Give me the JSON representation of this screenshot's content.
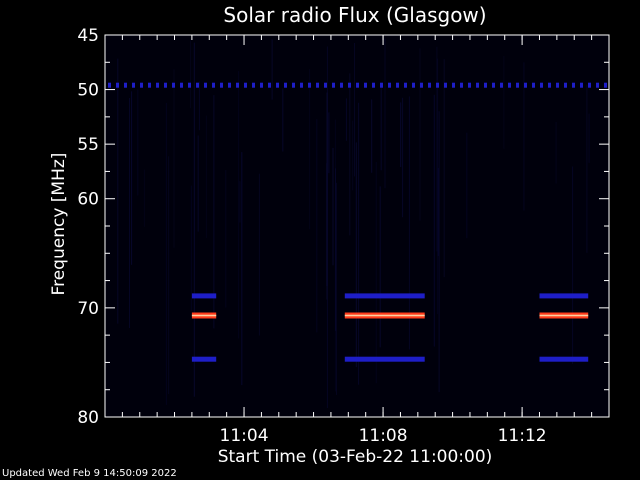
{
  "footer": {
    "updated": "Updated Wed Feb  9 14:50:09 2022"
  },
  "colors": {
    "background": "#000000",
    "axis": "#ffffff",
    "text": "#ffffff",
    "low_emission": "#0a0a3a",
    "mid_emission": "#1e1ec8",
    "high_emission": "#ff3a1a",
    "peak_emission": "#ffd0a0"
  },
  "chart_data": {
    "type": "heatmap",
    "title": "Solar radio Flux (Glasgow)",
    "xlabel": "Start Time (03-Feb-22 11:00:00)",
    "ylabel": "Frequency [MHz]",
    "x_unit": "minutes",
    "xlim": [
      0,
      14.5
    ],
    "ylim": [
      45,
      80
    ],
    "y_reversed": true,
    "grid": false,
    "x_ticks": [
      {
        "value": 4,
        "label": "11:04"
      },
      {
        "value": 8,
        "label": "11:08"
      },
      {
        "value": 12,
        "label": "11:12"
      }
    ],
    "x_minor_step": 0.5,
    "y_ticks": [
      {
        "value": 45,
        "label": "45"
      },
      {
        "value": 50,
        "label": "50"
      },
      {
        "value": 55,
        "label": "55"
      },
      {
        "value": 60,
        "label": "60"
      },
      {
        "value": 70,
        "label": "70"
      },
      {
        "value": 80,
        "label": "80"
      }
    ],
    "y_minor_ticks": [
      47.5,
      52.5,
      57.5,
      62.5,
      65,
      67.5,
      72.5,
      75,
      77.5
    ],
    "background_level": "low",
    "emission_features": [
      {
        "freq_mhz": 49.6,
        "start_min": 0.0,
        "end_min": 14.5,
        "intensity": "medium",
        "pattern": "dotted"
      },
      {
        "freq_mhz": 68.9,
        "start_min": 2.5,
        "end_min": 3.2,
        "intensity": "medium"
      },
      {
        "freq_mhz": 68.9,
        "start_min": 6.9,
        "end_min": 9.2,
        "intensity": "medium"
      },
      {
        "freq_mhz": 68.9,
        "start_min": 12.5,
        "end_min": 13.9,
        "intensity": "medium"
      },
      {
        "freq_mhz": 70.7,
        "start_min": 2.5,
        "end_min": 3.2,
        "intensity": "high"
      },
      {
        "freq_mhz": 70.7,
        "start_min": 6.9,
        "end_min": 9.2,
        "intensity": "high"
      },
      {
        "freq_mhz": 70.7,
        "start_min": 12.5,
        "end_min": 13.9,
        "intensity": "high"
      },
      {
        "freq_mhz": 74.7,
        "start_min": 2.5,
        "end_min": 3.2,
        "intensity": "medium"
      },
      {
        "freq_mhz": 74.7,
        "start_min": 6.9,
        "end_min": 9.2,
        "intensity": "medium"
      },
      {
        "freq_mhz": 74.7,
        "start_min": 12.5,
        "end_min": 13.9,
        "intensity": "medium"
      }
    ]
  }
}
